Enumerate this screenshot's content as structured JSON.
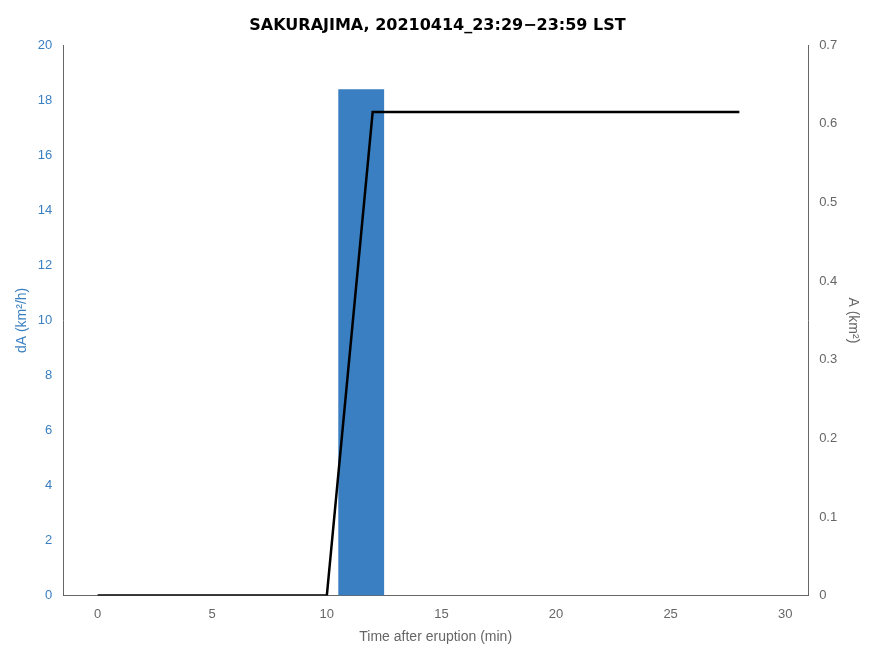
{
  "chart_data": {
    "type": "bar",
    "title": "SAKURAJIMA, 20210414_23:29−23:59 LST",
    "xlabel": "Time after eruption (min)",
    "ylabel": "dA (km²/h)",
    "y2label": "A (km²)",
    "xlim": [
      -1.5,
      31
    ],
    "xticks": [
      0,
      5,
      10,
      15,
      20,
      25,
      30
    ],
    "ylim": [
      0,
      20
    ],
    "yticks": [
      0,
      2,
      4,
      6,
      8,
      10,
      12,
      14,
      16,
      18,
      20
    ],
    "y2lim": [
      0,
      0.7
    ],
    "y2ticks": [
      0,
      0.1,
      0.2,
      0.3,
      0.4,
      0.5,
      0.6,
      0.7
    ],
    "grid": false,
    "series": [
      {
        "type": "bar",
        "color": "#3a7fc1",
        "x": [
          11.5
        ],
        "values": [
          18.4
        ]
      },
      {
        "type": "line",
        "axis": "y2",
        "color": "#000000",
        "x": [
          0,
          10.0,
          12.0,
          12.5,
          28.0
        ],
        "values": [
          0.0,
          0.0,
          0.615,
          0.615,
          0.615
        ]
      }
    ]
  }
}
